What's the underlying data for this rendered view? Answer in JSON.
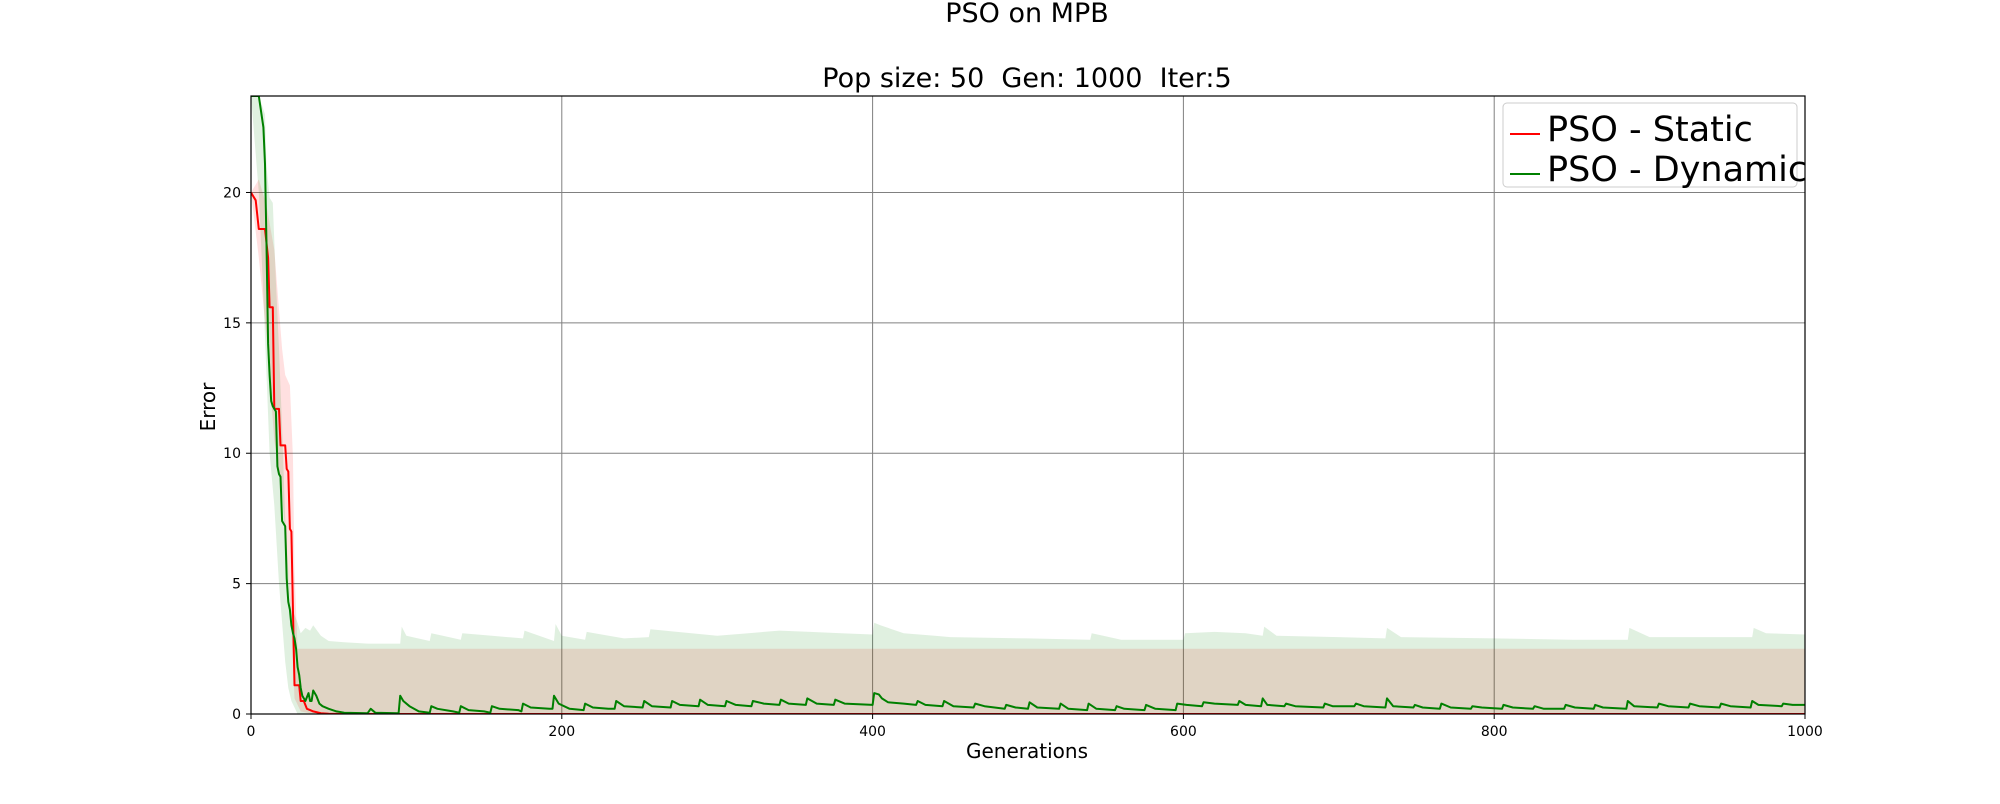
{
  "chart_data": {
    "type": "line",
    "title": "PSO on MPB",
    "subtitle": "Pop size: 50  Gen: 1000  Iter:5",
    "xlabel": "Generations",
    "ylabel": "Error",
    "xlim": [
      0,
      1000
    ],
    "ylim": [
      0,
      23.7
    ],
    "xticks": [
      0,
      200,
      400,
      600,
      800,
      1000
    ],
    "yticks": [
      0,
      5,
      10,
      15,
      20
    ],
    "grid": true,
    "legend_position": "top-right",
    "series": [
      {
        "name": "PSO - Static",
        "color": "#ff0000",
        "points": [
          [
            0,
            20
          ],
          [
            3,
            19.7
          ],
          [
            5,
            18.6
          ],
          [
            9,
            18.6
          ],
          [
            11,
            17.5
          ],
          [
            12,
            15.6
          ],
          [
            14,
            15.6
          ],
          [
            15,
            11.7
          ],
          [
            18,
            11.7
          ],
          [
            19,
            10.3
          ],
          [
            22,
            10.3
          ],
          [
            23,
            9.4
          ],
          [
            24,
            9.3
          ],
          [
            25,
            7.1
          ],
          [
            26,
            7.0
          ],
          [
            27,
            3.9
          ],
          [
            28,
            1.1
          ],
          [
            31,
            1.1
          ],
          [
            32,
            0.5
          ],
          [
            34,
            0.5
          ],
          [
            36,
            0.2
          ],
          [
            38,
            0.15
          ],
          [
            40,
            0.1
          ],
          [
            45,
            0.03
          ],
          [
            50,
            0.01
          ],
          [
            60,
            0
          ],
          [
            1000,
            0
          ]
        ],
        "band_lower": [
          [
            0,
            20
          ],
          [
            5,
            17.5
          ],
          [
            10,
            14.5
          ],
          [
            15,
            10.5
          ],
          [
            20,
            8.5
          ],
          [
            25,
            4.5
          ],
          [
            28,
            0.6
          ],
          [
            32,
            0.1
          ],
          [
            40,
            0
          ],
          [
            1000,
            0
          ]
        ],
        "band_upper": [
          [
            0,
            20
          ],
          [
            5,
            20.5
          ],
          [
            10,
            19.5
          ],
          [
            15,
            17.8
          ],
          [
            20,
            14
          ],
          [
            22,
            13
          ],
          [
            25,
            12.6
          ],
          [
            27,
            9.8
          ],
          [
            28,
            5.5
          ],
          [
            30,
            2.5
          ],
          [
            35,
            2.5
          ],
          [
            1000,
            2.5
          ]
        ]
      },
      {
        "name": "PSO - Dynamic",
        "color": "#008000",
        "points": [
          [
            0,
            23.7
          ],
          [
            5,
            23.7
          ],
          [
            8,
            22.5
          ],
          [
            9,
            21.1
          ],
          [
            10,
            18.0
          ],
          [
            11,
            14.2
          ],
          [
            12,
            13.0
          ],
          [
            13,
            12.0
          ],
          [
            14,
            11.8
          ],
          [
            16,
            11.6
          ],
          [
            17,
            9.5
          ],
          [
            18,
            9.2
          ],
          [
            19,
            9.1
          ],
          [
            20,
            7.4
          ],
          [
            22,
            7.2
          ],
          [
            23,
            5.2
          ],
          [
            24,
            4.3
          ],
          [
            25,
            4.0
          ],
          [
            26,
            3.4
          ],
          [
            27,
            3.1
          ],
          [
            28,
            2.9
          ],
          [
            29,
            2.5
          ],
          [
            30,
            1.8
          ],
          [
            31,
            1.5
          ],
          [
            32,
            1.0
          ],
          [
            33,
            0.7
          ],
          [
            35,
            0.5
          ],
          [
            37,
            0.8
          ],
          [
            38,
            0.5
          ],
          [
            39,
            0.5
          ],
          [
            40,
            0.9
          ],
          [
            42,
            0.7
          ],
          [
            44,
            0.4
          ],
          [
            46,
            0.3
          ],
          [
            50,
            0.2
          ],
          [
            55,
            0.1
          ],
          [
            60,
            0.05
          ],
          [
            75,
            0.03
          ],
          [
            77,
            0.2
          ],
          [
            80,
            0.05
          ],
          [
            95,
            0.03
          ],
          [
            96,
            0.7
          ],
          [
            98,
            0.5
          ],
          [
            102,
            0.3
          ],
          [
            108,
            0.1
          ],
          [
            115,
            0.05
          ],
          [
            116,
            0.3
          ],
          [
            120,
            0.2
          ],
          [
            130,
            0.1
          ],
          [
            134,
            0.05
          ],
          [
            135,
            0.3
          ],
          [
            140,
            0.15
          ],
          [
            150,
            0.1
          ],
          [
            154,
            0.05
          ],
          [
            155,
            0.3
          ],
          [
            160,
            0.2
          ],
          [
            172,
            0.15
          ],
          [
            174,
            0.1
          ],
          [
            175,
            0.4
          ],
          [
            180,
            0.25
          ],
          [
            192,
            0.2
          ],
          [
            194,
            0.2
          ],
          [
            195,
            0.7
          ],
          [
            198,
            0.4
          ],
          [
            205,
            0.2
          ],
          [
            214,
            0.15
          ],
          [
            215,
            0.4
          ],
          [
            220,
            0.25
          ],
          [
            230,
            0.2
          ],
          [
            234,
            0.2
          ],
          [
            235,
            0.5
          ],
          [
            240,
            0.3
          ],
          [
            252,
            0.25
          ],
          [
            253,
            0.5
          ],
          [
            258,
            0.3
          ],
          [
            270,
            0.25
          ],
          [
            271,
            0.5
          ],
          [
            276,
            0.35
          ],
          [
            288,
            0.3
          ],
          [
            289,
            0.55
          ],
          [
            294,
            0.35
          ],
          [
            305,
            0.3
          ],
          [
            306,
            0.5
          ],
          [
            312,
            0.35
          ],
          [
            322,
            0.3
          ],
          [
            323,
            0.5
          ],
          [
            330,
            0.4
          ],
          [
            340,
            0.35
          ],
          [
            341,
            0.55
          ],
          [
            346,
            0.4
          ],
          [
            357,
            0.35
          ],
          [
            358,
            0.6
          ],
          [
            364,
            0.4
          ],
          [
            375,
            0.35
          ],
          [
            376,
            0.55
          ],
          [
            382,
            0.4
          ],
          [
            400,
            0.35
          ],
          [
            401,
            0.8
          ],
          [
            404,
            0.75
          ],
          [
            406,
            0.6
          ],
          [
            410,
            0.45
          ],
          [
            420,
            0.4
          ],
          [
            428,
            0.35
          ],
          [
            429,
            0.5
          ],
          [
            434,
            0.35
          ],
          [
            445,
            0.3
          ],
          [
            446,
            0.5
          ],
          [
            452,
            0.3
          ],
          [
            465,
            0.25
          ],
          [
            466,
            0.4
          ],
          [
            472,
            0.3
          ],
          [
            485,
            0.2
          ],
          [
            486,
            0.35
          ],
          [
            492,
            0.25
          ],
          [
            500,
            0.2
          ],
          [
            501,
            0.45
          ],
          [
            506,
            0.25
          ],
          [
            520,
            0.2
          ],
          [
            521,
            0.4
          ],
          [
            526,
            0.2
          ],
          [
            538,
            0.15
          ],
          [
            539,
            0.4
          ],
          [
            544,
            0.2
          ],
          [
            556,
            0.15
          ],
          [
            557,
            0.3
          ],
          [
            562,
            0.2
          ],
          [
            575,
            0.15
          ],
          [
            576,
            0.35
          ],
          [
            582,
            0.2
          ],
          [
            595,
            0.15
          ],
          [
            596,
            0.4
          ],
          [
            602,
            0.35
          ],
          [
            612,
            0.3
          ],
          [
            613,
            0.45
          ],
          [
            620,
            0.4
          ],
          [
            635,
            0.35
          ],
          [
            636,
            0.5
          ],
          [
            640,
            0.35
          ],
          [
            650,
            0.3
          ],
          [
            651,
            0.6
          ],
          [
            654,
            0.35
          ],
          [
            665,
            0.3
          ],
          [
            666,
            0.4
          ],
          [
            672,
            0.3
          ],
          [
            690,
            0.25
          ],
          [
            691,
            0.4
          ],
          [
            696,
            0.3
          ],
          [
            710,
            0.3
          ],
          [
            711,
            0.4
          ],
          [
            716,
            0.3
          ],
          [
            730,
            0.25
          ],
          [
            731,
            0.6
          ],
          [
            735,
            0.3
          ],
          [
            748,
            0.25
          ],
          [
            749,
            0.35
          ],
          [
            754,
            0.25
          ],
          [
            765,
            0.2
          ],
          [
            766,
            0.4
          ],
          [
            772,
            0.25
          ],
          [
            785,
            0.2
          ],
          [
            786,
            0.3
          ],
          [
            792,
            0.25
          ],
          [
            805,
            0.2
          ],
          [
            806,
            0.35
          ],
          [
            812,
            0.25
          ],
          [
            825,
            0.2
          ],
          [
            826,
            0.3
          ],
          [
            832,
            0.2
          ],
          [
            845,
            0.2
          ],
          [
            846,
            0.35
          ],
          [
            852,
            0.25
          ],
          [
            864,
            0.2
          ],
          [
            865,
            0.35
          ],
          [
            870,
            0.25
          ],
          [
            885,
            0.2
          ],
          [
            886,
            0.5
          ],
          [
            890,
            0.3
          ],
          [
            905,
            0.25
          ],
          [
            906,
            0.4
          ],
          [
            912,
            0.3
          ],
          [
            925,
            0.25
          ],
          [
            926,
            0.4
          ],
          [
            932,
            0.3
          ],
          [
            945,
            0.25
          ],
          [
            946,
            0.4
          ],
          [
            952,
            0.3
          ],
          [
            965,
            0.25
          ],
          [
            966,
            0.5
          ],
          [
            970,
            0.35
          ],
          [
            985,
            0.3
          ],
          [
            986,
            0.4
          ],
          [
            992,
            0.35
          ],
          [
            1000,
            0.35
          ]
        ],
        "band_lower": [
          [
            0,
            23.7
          ],
          [
            5,
            20
          ],
          [
            8,
            16
          ],
          [
            10,
            13
          ],
          [
            12,
            10
          ],
          [
            15,
            8
          ],
          [
            18,
            5
          ],
          [
            20,
            3.5
          ],
          [
            22,
            2
          ],
          [
            24,
            1
          ],
          [
            26,
            0.5
          ],
          [
            30,
            0
          ],
          [
            1000,
            0
          ]
        ],
        "band_upper": [
          [
            0,
            23.7
          ],
          [
            5,
            23.7
          ],
          [
            9,
            23
          ],
          [
            10,
            21
          ],
          [
            12,
            19.8
          ],
          [
            14,
            19.6
          ],
          [
            16,
            16.6
          ],
          [
            18,
            14
          ],
          [
            20,
            11
          ],
          [
            22,
            7.5
          ],
          [
            24,
            5.5
          ],
          [
            26,
            4
          ],
          [
            28,
            3.8
          ],
          [
            30,
            3.5
          ],
          [
            32,
            3.1
          ],
          [
            35,
            3.3
          ],
          [
            38,
            3.2
          ],
          [
            40,
            3.4
          ],
          [
            45,
            3.0
          ],
          [
            50,
            2.8
          ],
          [
            60,
            2.75
          ],
          [
            75,
            2.7
          ],
          [
            96,
            2.7
          ],
          [
            97,
            3.35
          ],
          [
            100,
            3.0
          ],
          [
            115,
            2.8
          ],
          [
            116,
            3.1
          ],
          [
            135,
            2.85
          ],
          [
            136,
            3.1
          ],
          [
            175,
            2.9
          ],
          [
            176,
            3.2
          ],
          [
            195,
            2.8
          ],
          [
            196,
            3.45
          ],
          [
            200,
            3.0
          ],
          [
            215,
            2.85
          ],
          [
            216,
            3.15
          ],
          [
            240,
            2.9
          ],
          [
            256,
            2.95
          ],
          [
            257,
            3.25
          ],
          [
            300,
            3.0
          ],
          [
            320,
            3.1
          ],
          [
            340,
            3.2
          ],
          [
            360,
            3.15
          ],
          [
            380,
            3.1
          ],
          [
            400,
            3.05
          ],
          [
            401,
            3.5
          ],
          [
            405,
            3.4
          ],
          [
            420,
            3.1
          ],
          [
            440,
            3.0
          ],
          [
            450,
            2.95
          ],
          [
            500,
            2.9
          ],
          [
            540,
            2.85
          ],
          [
            541,
            3.1
          ],
          [
            560,
            2.85
          ],
          [
            600,
            2.85
          ],
          [
            601,
            3.1
          ],
          [
            620,
            3.15
          ],
          [
            640,
            3.1
          ],
          [
            651,
            3.0
          ],
          [
            652,
            3.35
          ],
          [
            660,
            3.0
          ],
          [
            700,
            2.95
          ],
          [
            730,
            2.9
          ],
          [
            731,
            3.3
          ],
          [
            740,
            2.95
          ],
          [
            800,
            2.9
          ],
          [
            850,
            2.85
          ],
          [
            886,
            2.85
          ],
          [
            887,
            3.3
          ],
          [
            900,
            2.95
          ],
          [
            960,
            2.95
          ],
          [
            966,
            2.95
          ],
          [
            967,
            3.3
          ],
          [
            975,
            3.1
          ],
          [
            1000,
            3.05
          ]
        ]
      }
    ]
  }
}
